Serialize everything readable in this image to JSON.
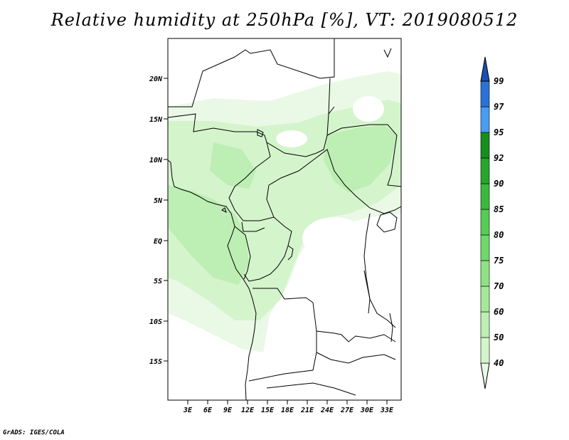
{
  "title": "Relative humidity at 250hPa [%], VT: 2019080512",
  "credit": "GrADS: IGES/COLA",
  "map": {
    "lat_ticks": [
      "20N",
      "15N",
      "10N",
      "5N",
      "EQ",
      "5S",
      "10S",
      "15S"
    ],
    "lon_ticks": [
      "3E",
      "6E",
      "9E",
      "12E",
      "15E",
      "18E",
      "21E",
      "24E",
      "27E",
      "30E",
      "33E"
    ]
  },
  "colorbar": {
    "levels": [
      "40",
      "50",
      "60",
      "70",
      "75",
      "80",
      "85",
      "90",
      "92",
      "95",
      "97",
      "99"
    ],
    "colors": [
      "#eaf9e6",
      "#d4f4cc",
      "#bdeeb3",
      "#a6e89a",
      "#8fe283",
      "#6fd86a",
      "#56cb56",
      "#3bb93e",
      "#27a52c",
      "#168f1c",
      "#4a9cf0",
      "#2a72d6",
      "#1a4fb4"
    ]
  }
}
